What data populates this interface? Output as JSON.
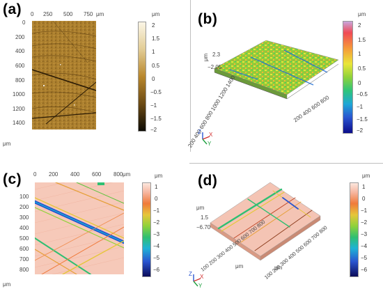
{
  "panels": {
    "a": {
      "label": "(a)",
      "x_ticks": [
        "0",
        "250",
        "500",
        "750"
      ],
      "x_unit": "μm",
      "y_ticks": [
        "0",
        "200",
        "400",
        "600",
        "800",
        "1000",
        "1200",
        "1400"
      ],
      "y_unit": "μm",
      "colorbar": {
        "unit": "μm",
        "ticks": [
          "2",
          "1.5",
          "1",
          "0.5",
          "0",
          "−0.5",
          "−1",
          "−1.5",
          "−2"
        ],
        "top_color": "#fbf6e6",
        "mid_color": "#b8872d",
        "bottom_color": "#0d0b04"
      }
    },
    "b": {
      "label": "(b)",
      "z_top": "2.3",
      "z_bottom": "−2.05",
      "z_unit": "μm",
      "x_axis_ticks": "200 400 600 800 1000 1200 1400",
      "y_axis_ticks": "200 400 600 800",
      "colorbar": {
        "unit": "μm",
        "ticks": [
          "2",
          "1.5",
          "1",
          "0.5",
          "0",
          "−0.5",
          "−1",
          "−1.5",
          "−2"
        ]
      },
      "axes": {
        "z": "Z",
        "x": "X",
        "y": "Y"
      }
    },
    "c": {
      "label": "(c)",
      "x_ticks": [
        "0",
        "200",
        "400",
        "600",
        "800"
      ],
      "x_unit": "μm",
      "y_ticks": [
        "100",
        "200",
        "300",
        "400",
        "500",
        "600",
        "700",
        "800"
      ],
      "y_unit": "μm",
      "colorbar": {
        "unit": "μm",
        "ticks": [
          "1",
          "0",
          "−1",
          "−2",
          "−3",
          "−4",
          "−5",
          "−6"
        ]
      }
    },
    "d": {
      "label": "(d)",
      "z_top": "1.5",
      "z_bottom": "−6.70",
      "z_unit": "μm",
      "x_axis_ticks": "100 200 300 400 500 600 700 800",
      "x_axis_unit": "μm",
      "y_axis_ticks": "100 200 300 400 500 600 700 800",
      "y_axis_unit": "μm",
      "colorbar": {
        "unit": "μm",
        "ticks": [
          "1",
          "0",
          "−1",
          "−2",
          "−3",
          "−4",
          "−5",
          "−6"
        ]
      },
      "axes": {
        "z": "Z",
        "x": "X",
        "y": "Y"
      }
    }
  }
}
